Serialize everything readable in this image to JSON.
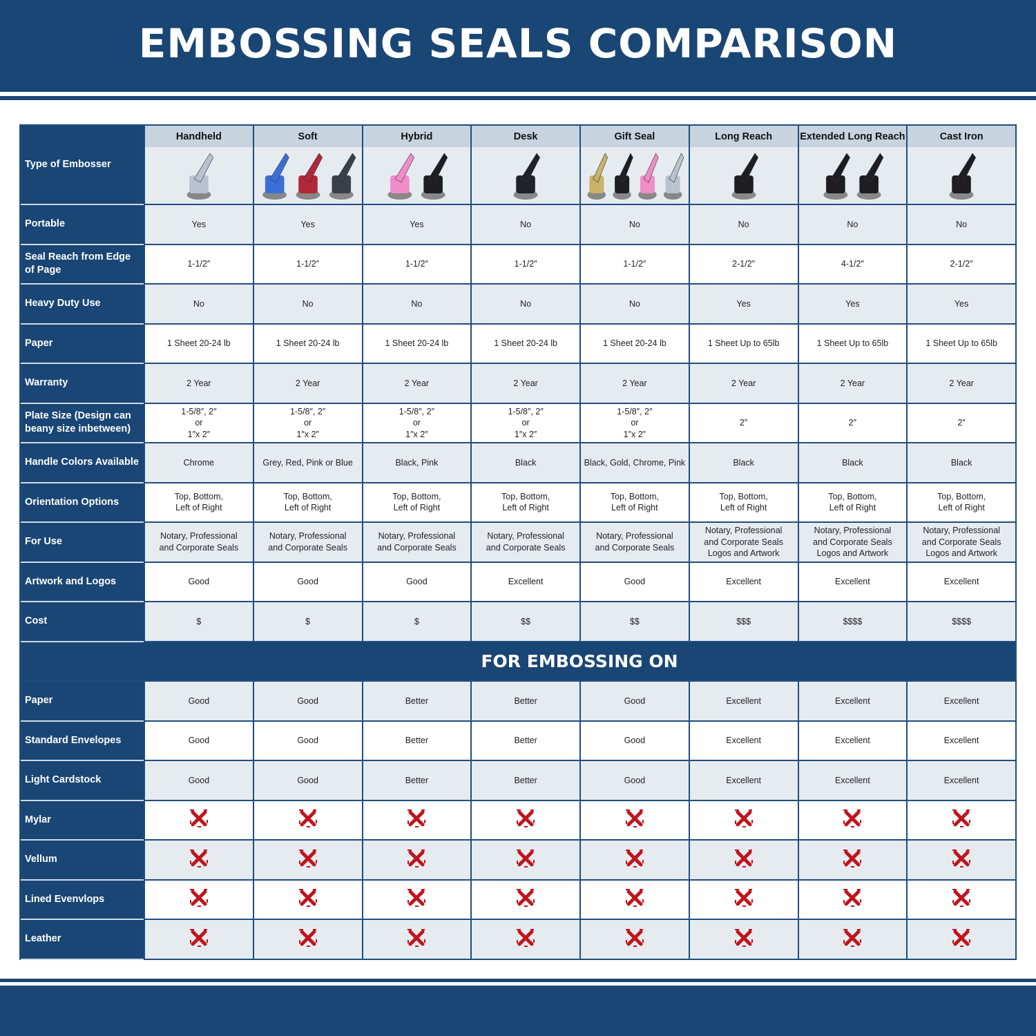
{
  "title": "EMBOSSING SEALS COMPARISON",
  "header_label": "Type of Embosser",
  "columns": [
    {
      "name": "Handheld",
      "image_colors": [
        "#b8c2d0"
      ]
    },
    {
      "name": "Soft",
      "image_colors": [
        "#3a6fd8",
        "#b0283a",
        "#3a3f4a"
      ]
    },
    {
      "name": "Hybrid",
      "image_colors": [
        "#f08cc8",
        "#1e1e22"
      ]
    },
    {
      "name": "Desk",
      "image_colors": [
        "#202228"
      ]
    },
    {
      "name": "Gift Seal",
      "image_colors": [
        "#c9b26a",
        "#1e1e22",
        "#f08cc8",
        "#b8c2d0"
      ]
    },
    {
      "name": "Long Reach",
      "image_colors": [
        "#1e1e22"
      ]
    },
    {
      "name": "Extended Long Reach",
      "image_colors": [
        "#1e1e22",
        "#1e1e22"
      ]
    },
    {
      "name": "Cast Iron",
      "image_colors": [
        "#1e1e22"
      ]
    }
  ],
  "rows": [
    {
      "label": "Portable",
      "values": [
        "Yes",
        "Yes",
        "Yes",
        "No",
        "No",
        "No",
        "No",
        "No"
      ]
    },
    {
      "label": "Seal Reach from Edge of Page",
      "values": [
        "1-1/2″",
        "1-1/2″",
        "1-1/2″",
        "1-1/2″",
        "1-1/2″",
        "2-1/2″",
        "4-1/2″",
        "2-1/2″"
      ]
    },
    {
      "label": "Heavy Duty Use",
      "values": [
        "No",
        "No",
        "No",
        "No",
        "No",
        "Yes",
        "Yes",
        "Yes"
      ]
    },
    {
      "label": "Paper",
      "values": [
        "1 Sheet 20-24 lb",
        "1 Sheet 20-24 lb",
        "1 Sheet 20-24 lb",
        "1 Sheet 20-24 lb",
        "1 Sheet 20-24 lb",
        "1 Sheet Up to 65lb",
        "1 Sheet Up to 65lb",
        "1 Sheet Up to 65lb"
      ]
    },
    {
      "label": "Warranty",
      "values": [
        "2 Year",
        "2 Year",
        "2 Year",
        "2 Year",
        "2 Year",
        "2 Year",
        "2 Year",
        "2 Year"
      ]
    },
    {
      "label": "Plate Size (Design can beany size inbetween)",
      "values": [
        "1-5/8″, 2″\nor\n1″x 2″",
        "1-5/8″, 2″\nor\n1″x 2″",
        "1-5/8″, 2″\nor\n1″x 2″",
        "1-5/8″, 2″\nor\n1″x 2″",
        "1-5/8″, 2″\nor\n1″x 2″",
        "2″",
        "2″",
        "2″"
      ]
    },
    {
      "label": "Handle Colors Available",
      "values": [
        "Chrome",
        "Grey, Red, Pink or Blue",
        "Black, Pink",
        "Black",
        "Black, Gold, Chrome, Pink",
        "Black",
        "Black",
        "Black"
      ]
    },
    {
      "label": "Orientation Options",
      "values": [
        "Top, Bottom,\nLeft of Right",
        "Top, Bottom,\nLeft of Right",
        "Top, Bottom,\nLeft of Right",
        "Top, Bottom,\nLeft of Right",
        "Top, Bottom,\nLeft of Right",
        "Top, Bottom,\nLeft of Right",
        "Top, Bottom,\nLeft of Right",
        "Top, Bottom,\nLeft of Right"
      ]
    },
    {
      "label": "For Use",
      "values": [
        "Notary, Professional\nand Corporate Seals",
        "Notary, Professional\nand Corporate Seals",
        "Notary, Professional\nand Corporate Seals",
        "Notary, Professional\nand Corporate Seals",
        "Notary, Professional\nand Corporate Seals",
        "Notary, Professional\nand Corporate Seals\nLogos and Artwork",
        "Notary, Professional\nand Corporate Seals\nLogos and Artwork",
        "Notary, Professional\nand Corporate Seals\nLogos and Artwork"
      ]
    },
    {
      "label": "Artwork and Logos",
      "values": [
        "Good",
        "Good",
        "Good",
        "Excellent",
        "Good",
        "Excellent",
        "Excellent",
        "Excellent"
      ]
    },
    {
      "label": "Cost",
      "values": [
        "$",
        "$",
        "$",
        "$$",
        "$$",
        "$$$",
        "$$$$",
        "$$$$"
      ]
    }
  ],
  "section_title": "FOR EMBOSSING ON",
  "emboss_rows": [
    {
      "label": "Paper",
      "values": [
        "Good",
        "Good",
        "Better",
        "Better",
        "Good",
        "Excellent",
        "Excellent",
        "Excellent"
      ]
    },
    {
      "label": "Standard Envelopes",
      "values": [
        "Good",
        "Good",
        "Better",
        "Better",
        "Good",
        "Excellent",
        "Excellent",
        "Excellent"
      ]
    },
    {
      "label": "Light Cardstock",
      "values": [
        "Good",
        "Good",
        "Better",
        "Better",
        "Good",
        "Excellent",
        "Excellent",
        "Excellent"
      ]
    },
    {
      "label": "Mylar",
      "values": [
        "x",
        "x",
        "x",
        "x",
        "x",
        "x",
        "x",
        "x"
      ]
    },
    {
      "label": "Vellum",
      "values": [
        "x",
        "x",
        "x",
        "x",
        "x",
        "x",
        "x",
        "x"
      ]
    },
    {
      "label": "Lined Evenvlops",
      "values": [
        "x",
        "x",
        "x",
        "x",
        "x",
        "x",
        "x",
        "x"
      ]
    },
    {
      "label": "Leather",
      "values": [
        "x",
        "x",
        "x",
        "x",
        "x",
        "x",
        "x",
        "x"
      ]
    }
  ],
  "icons": {
    "not_supported": "red-x-icon",
    "x_color": "#c0141c"
  },
  "colors": {
    "navy": "#1a4675",
    "row_alt": "#e6ebf0",
    "header_cell": "#c7d3df"
  }
}
